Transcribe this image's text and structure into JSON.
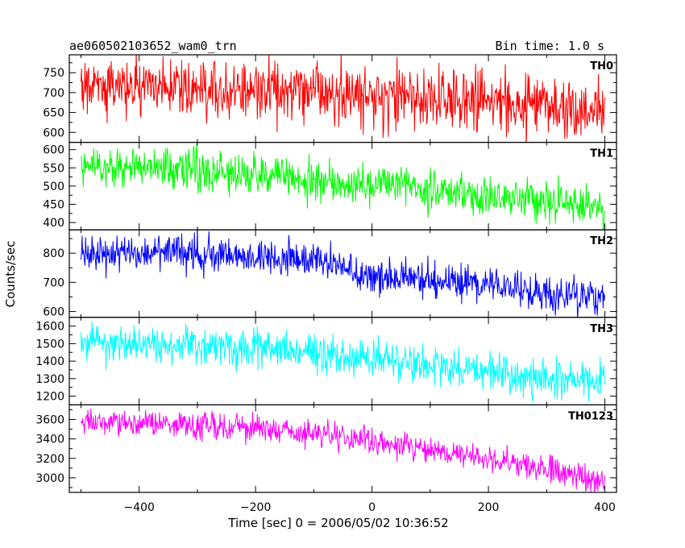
{
  "header": {
    "title": "ae060502103652_wam0_trn",
    "bin_time": "Bin time: 1.0 s"
  },
  "chart_data": {
    "type": "line",
    "xlabel": "Time [sec] 0 = 2006/05/02 10:36:52",
    "ylabel": "Counts/sec",
    "xlim": [
      -520,
      420
    ],
    "xticks": [
      -400,
      -200,
      0,
      200,
      400
    ],
    "x_range_data": [
      -500,
      400
    ],
    "bin_seconds": 1.0,
    "grid": false,
    "panels": [
      {
        "name": "TH0",
        "color": "#ff0000",
        "ylim": [
          575,
          795
        ],
        "yticks": [
          600,
          650,
          700,
          750
        ],
        "trend": [
          {
            "x": -500,
            "y": 720
          },
          {
            "x": 0,
            "y": 695
          },
          {
            "x": 400,
            "y": 655
          }
        ],
        "noise": 40
      },
      {
        "name": "TH1",
        "color": "#00ff00",
        "ylim": [
          380,
          620
        ],
        "yticks": [
          400,
          450,
          500,
          550,
          600
        ],
        "trend": [
          {
            "x": -500,
            "y": 560
          },
          {
            "x": -250,
            "y": 540
          },
          {
            "x": 0,
            "y": 505
          },
          {
            "x": 400,
            "y": 440
          }
        ],
        "noise": 28
      },
      {
        "name": "TH2",
        "color": "#0000ff",
        "ylim": [
          580,
          880
        ],
        "yticks": [
          600,
          700,
          800
        ],
        "trend": [
          {
            "x": -500,
            "y": 795
          },
          {
            "x": -300,
            "y": 800
          },
          {
            "x": -100,
            "y": 775
          },
          {
            "x": 0,
            "y": 720
          },
          {
            "x": 200,
            "y": 690
          },
          {
            "x": 400,
            "y": 640
          }
        ],
        "noise": 32
      },
      {
        "name": "TH3",
        "color": "#00ffff",
        "ylim": [
          1150,
          1650
        ],
        "yticks": [
          1200,
          1300,
          1400,
          1500,
          1600
        ],
        "trend": [
          {
            "x": -500,
            "y": 1510
          },
          {
            "x": -200,
            "y": 1470
          },
          {
            "x": 0,
            "y": 1420
          },
          {
            "x": 200,
            "y": 1330
          },
          {
            "x": 400,
            "y": 1270
          }
        ],
        "noise": 55
      },
      {
        "name": "TH0123",
        "color": "#ff00ff",
        "ylim": [
          2850,
          3750
        ],
        "yticks": [
          3000,
          3200,
          3400,
          3600
        ],
        "trend": [
          {
            "x": -500,
            "y": 3580
          },
          {
            "x": -200,
            "y": 3520
          },
          {
            "x": 0,
            "y": 3380
          },
          {
            "x": 200,
            "y": 3200
          },
          {
            "x": 400,
            "y": 2980
          }
        ],
        "noise": 70
      }
    ]
  }
}
